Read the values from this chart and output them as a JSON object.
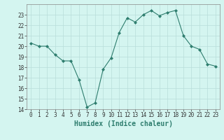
{
  "x": [
    0,
    1,
    2,
    3,
    4,
    5,
    6,
    7,
    8,
    9,
    10,
    11,
    12,
    13,
    14,
    15,
    16,
    17,
    18,
    19,
    20,
    21,
    22,
    23
  ],
  "y": [
    20.3,
    20.0,
    20.0,
    19.2,
    18.6,
    18.6,
    16.8,
    14.2,
    14.6,
    17.8,
    18.9,
    21.3,
    22.7,
    22.3,
    23.0,
    23.4,
    22.9,
    23.2,
    23.4,
    21.0,
    20.0,
    19.7,
    18.3,
    18.1
  ],
  "line_color": "#2e7d6e",
  "marker": "D",
  "marker_size": 2,
  "bg_color": "#d4f5f0",
  "grid_color": "#b8deda",
  "xlabel": "Humidex (Indice chaleur)",
  "ylim": [
    14,
    24
  ],
  "xlim": [
    -0.5,
    23.5
  ],
  "yticks": [
    14,
    15,
    16,
    17,
    18,
    19,
    20,
    21,
    22,
    23
  ],
  "xticks": [
    0,
    1,
    2,
    3,
    4,
    5,
    6,
    7,
    8,
    9,
    10,
    11,
    12,
    13,
    14,
    15,
    16,
    17,
    18,
    19,
    20,
    21,
    22,
    23
  ],
  "tick_fontsize": 5.5,
  "label_fontsize": 7.0,
  "linewidth": 0.8
}
